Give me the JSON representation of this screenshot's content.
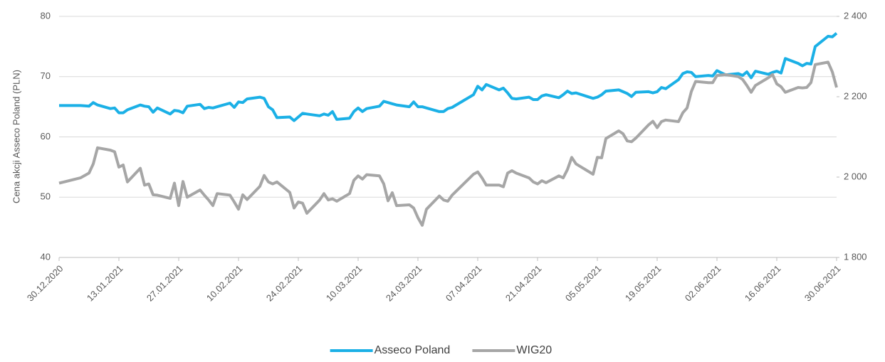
{
  "chart_data": {
    "type": "line",
    "y_label": "Cena akcji Asseco Poland (PLN)",
    "x": [
      "30.12.2020",
      "04.01.2021",
      "06.01.2021",
      "07.01.2021",
      "08.01.2021",
      "11.01.2021",
      "12.01.2021",
      "13.01.2021",
      "14.01.2021",
      "15.01.2021",
      "18.01.2021",
      "19.01.2021",
      "20.01.2021",
      "21.01.2021",
      "22.01.2021",
      "25.01.2021",
      "26.01.2021",
      "27.01.2021",
      "28.01.2021",
      "29.01.2021",
      "01.02.2021",
      "02.02.2021",
      "03.02.2021",
      "04.02.2021",
      "05.02.2021",
      "08.02.2021",
      "09.02.2021",
      "10.02.2021",
      "11.02.2021",
      "12.02.2021",
      "15.02.2021",
      "16.02.2021",
      "17.02.2021",
      "18.02.2021",
      "19.02.2021",
      "22.02.2021",
      "23.02.2021",
      "24.02.2021",
      "25.02.2021",
      "26.02.2021",
      "01.03.2021",
      "02.03.2021",
      "03.03.2021",
      "04.03.2021",
      "05.03.2021",
      "08.03.2021",
      "09.03.2021",
      "10.03.2021",
      "11.03.2021",
      "12.03.2021",
      "15.03.2021",
      "16.03.2021",
      "17.03.2021",
      "18.03.2021",
      "19.03.2021",
      "22.03.2021",
      "23.03.2021",
      "24.03.2021",
      "25.03.2021",
      "26.03.2021",
      "29.03.2021",
      "30.03.2021",
      "31.03.2021",
      "01.04.2021",
      "06.04.2021",
      "07.04.2021",
      "08.04.2021",
      "09.04.2021",
      "12.04.2021",
      "13.04.2021",
      "14.04.2021",
      "15.04.2021",
      "16.04.2021",
      "19.04.2021",
      "20.04.2021",
      "21.04.2021",
      "22.04.2021",
      "23.04.2021",
      "26.04.2021",
      "27.04.2021",
      "28.04.2021",
      "29.04.2021",
      "30.04.2021",
      "04.05.2021",
      "05.05.2021",
      "06.05.2021",
      "07.05.2021",
      "10.05.2021",
      "11.05.2021",
      "12.05.2021",
      "13.05.2021",
      "14.05.2021",
      "17.05.2021",
      "18.05.2021",
      "19.05.2021",
      "20.05.2021",
      "21.05.2021",
      "24.05.2021",
      "25.05.2021",
      "26.05.2021",
      "27.05.2021",
      "28.05.2021",
      "31.05.2021",
      "01.06.2021",
      "02.06.2021",
      "04.06.2021",
      "07.06.2021",
      "08.06.2021",
      "09.06.2021",
      "10.06.2021",
      "11.06.2021",
      "14.06.2021",
      "15.06.2021",
      "16.06.2021",
      "17.06.2021",
      "18.06.2021",
      "21.06.2021",
      "22.06.2021",
      "23.06.2021",
      "24.06.2021",
      "25.06.2021",
      "28.06.2021",
      "29.06.2021",
      "30.06.2021"
    ],
    "series": [
      {
        "name": "Asseco Poland",
        "color": "#1bb0e6",
        "values": [
          65.2,
          65.2,
          65.1,
          65.7,
          65.3,
          64.7,
          64.8,
          64.0,
          64.0,
          64.5,
          65.3,
          65.1,
          65.0,
          64.1,
          64.8,
          63.8,
          64.4,
          64.3,
          64.0,
          65.1,
          65.4,
          64.7,
          64.9,
          64.8,
          65.0,
          65.6,
          64.9,
          65.8,
          65.7,
          66.3,
          66.6,
          66.4,
          65.0,
          64.5,
          63.2,
          63.3,
          62.7,
          63.3,
          63.9,
          63.8,
          63.5,
          63.8,
          63.6,
          64.2,
          62.9,
          63.1,
          64.2,
          64.8,
          64.2,
          64.7,
          65.1,
          65.9,
          65.7,
          65.5,
          65.3,
          65.0,
          65.8,
          65.0,
          65.0,
          64.8,
          64.2,
          64.2,
          64.7,
          64.9,
          67.0,
          68.4,
          67.8,
          68.7,
          67.8,
          68.1,
          67.3,
          66.4,
          66.3,
          66.6,
          66.2,
          66.2,
          66.8,
          67.0,
          66.5,
          67.0,
          67.6,
          67.2,
          67.3,
          66.4,
          66.6,
          67.0,
          67.6,
          67.8,
          67.5,
          67.2,
          66.7,
          67.4,
          67.5,
          67.3,
          67.5,
          68.2,
          68.0,
          69.5,
          70.5,
          70.8,
          70.7,
          70.0,
          70.2,
          70.1,
          71.0,
          70.3,
          70.5,
          70.2,
          70.8,
          69.8,
          70.9,
          70.4,
          70.7,
          70.9,
          70.6,
          73.0,
          72.2,
          71.8,
          72.2,
          72.1,
          75.0,
          76.7,
          76.6,
          77.2
        ]
      },
      {
        "name": "WIG20",
        "color": "#a6a6a6",
        "axis": "y2",
        "values": [
          1985,
          1998,
          2010,
          2033,
          2073,
          2067,
          2063,
          2025,
          2030,
          1988,
          2022,
          1980,
          1983,
          1956,
          1955,
          1947,
          1985,
          1929,
          1989,
          1950,
          1968,
          1955,
          1943,
          1929,
          1959,
          1955,
          1938,
          1920,
          1956,
          1944,
          1977,
          2004,
          1988,
          1983,
          1988,
          1962,
          1923,
          1938,
          1935,
          1910,
          1943,
          1959,
          1943,
          1946,
          1940,
          1959,
          1992,
          2003,
          1995,
          2006,
          2003,
          1983,
          1941,
          1961,
          1929,
          1931,
          1923,
          1899,
          1880,
          1920,
          1953,
          1943,
          1940,
          1955,
          2007,
          2013,
          1998,
          1980,
          1980,
          1976,
          2010,
          2016,
          2010,
          1998,
          1988,
          1983,
          1991,
          1986,
          2003,
          1998,
          2019,
          2049,
          2033,
          2007,
          2049,
          2048,
          2096,
          2115,
          2108,
          2090,
          2088,
          2097,
          2130,
          2139,
          2123,
          2138,
          2142,
          2138,
          2160,
          2172,
          2213,
          2238,
          2235,
          2235,
          2253,
          2255,
          2250,
          2243,
          2228,
          2211,
          2228,
          2247,
          2255,
          2232,
          2225,
          2211,
          2223,
          2222,
          2223,
          2235,
          2280,
          2286,
          2262,
          2223
        ]
      }
    ],
    "xlim": [
      "30.12.2020",
      "30.06.2021"
    ],
    "xticks": [
      "30.12.2020",
      "13.01.2021",
      "27.01.2021",
      "10.02.2021",
      "24.02.2021",
      "10.03.2021",
      "24.03.2021",
      "07.04.2021",
      "21.04.2021",
      "05.05.2021",
      "19.05.2021",
      "02.06.2021",
      "16.06.2021",
      "30.06.2021"
    ],
    "ylim": [
      40,
      80
    ],
    "yticks": [
      40,
      50,
      60,
      70,
      80
    ],
    "y2lim": [
      1800,
      2400
    ],
    "y2ticks": [
      {
        "value": 1800,
        "label": "1 800"
      },
      {
        "value": 2000,
        "label": "2 000"
      },
      {
        "value": 2200,
        "label": "2 200"
      },
      {
        "value": 2400,
        "label": "2 400"
      }
    ],
    "grid": true,
    "legend": "bottom"
  }
}
